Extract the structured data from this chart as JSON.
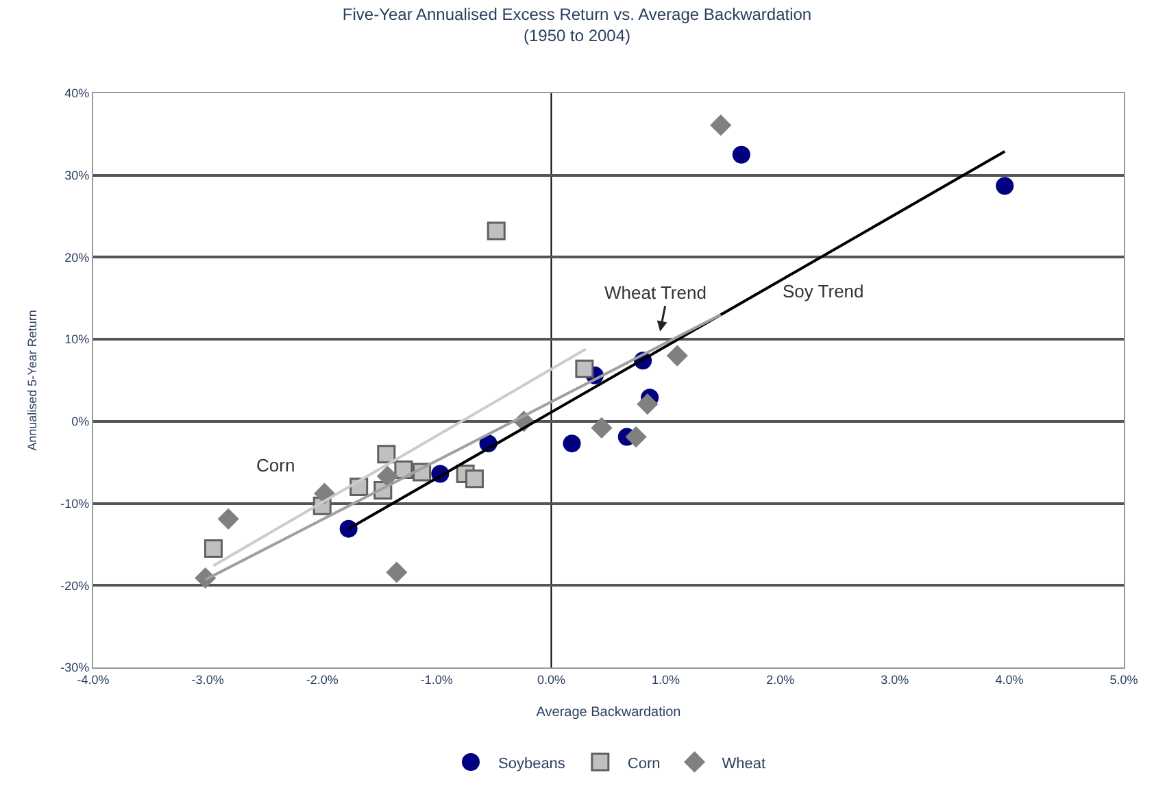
{
  "chart_data": {
    "type": "scatter",
    "title": "Five-Year Annualised Excess Return vs. Average Backwardation",
    "subtitle": "(1950 to 2004)",
    "xlabel": "Average Backwardation",
    "ylabel": "Annualised 5-Year Return",
    "series": [
      {
        "name": "Soybeans",
        "color": "#000080",
        "marker": "circle",
        "x": [
          -1.77,
          -0.97,
          -0.55,
          0.18,
          0.38,
          0.8,
          0.86,
          0.66,
          1.66,
          3.96
        ],
        "values": [
          -13.1,
          -6.4,
          -2.7,
          -2.7,
          5.6,
          7.4,
          2.9,
          -1.9,
          32.5,
          28.7
        ]
      },
      {
        "name": "Corn",
        "color": "#c0c0c0",
        "marker": "square",
        "x": [
          -0.48,
          0.29,
          -1.44,
          -1.29,
          -1.13,
          -1.68,
          -1.47,
          -2.0,
          -2.95,
          -0.75,
          -0.67
        ],
        "values": [
          23.2,
          6.4,
          -4.0,
          -5.9,
          -6.2,
          -8.0,
          -8.4,
          -10.3,
          -15.5,
          -6.4,
          -7.0
        ]
      },
      {
        "name": "Wheat",
        "color": "#808080",
        "marker": "diamond",
        "x": [
          -3.02,
          -2.82,
          -1.98,
          -1.35,
          -1.43,
          -0.24,
          0.44,
          0.74,
          0.84,
          1.1,
          1.48
        ],
        "values": [
          -19.1,
          -11.9,
          -8.8,
          -18.4,
          -6.7,
          0.0,
          -0.8,
          -1.9,
          2.1,
          8.0,
          36.1
        ]
      },
      {
        "type": "line",
        "color": "#000000",
        "x": [
          -1.77,
          3.96
        ],
        "values": [
          -13.1,
          32.9
        ]
      },
      {
        "type": "line",
        "color": "#a0a0a0",
        "x": [
          -3.02,
          1.48
        ],
        "values": [
          -19.3,
          13.0
        ]
      },
      {
        "type": "line",
        "color": "#cccccc",
        "x": [
          -2.95,
          0.3
        ],
        "values": [
          -17.6,
          8.8
        ]
      }
    ],
    "xlim": [
      -4,
      5
    ],
    "xticks": [
      {
        "value": -4,
        "label": "-4.0%"
      },
      {
        "value": -3,
        "label": "-3.0%"
      },
      {
        "value": -2,
        "label": "-2.0%"
      },
      {
        "value": -1,
        "label": "-1.0%"
      },
      {
        "value": 0,
        "label": "0.0%"
      },
      {
        "value": 1,
        "label": "1.0%"
      },
      {
        "value": 2,
        "label": "2.0%"
      },
      {
        "value": 3,
        "label": "3.0%"
      },
      {
        "value": 4,
        "label": "4.0%"
      },
      {
        "value": 5,
        "label": "5.0%"
      }
    ],
    "ylim": [
      -30,
      40
    ],
    "yticks": [
      {
        "value": -30,
        "label": "-30%"
      },
      {
        "value": -20,
        "label": "-20%"
      },
      {
        "value": -10,
        "label": "-10%"
      },
      {
        "value": 0,
        "label": "0%"
      },
      {
        "value": 10,
        "label": "10%"
      },
      {
        "value": 20,
        "label": "20%"
      },
      {
        "value": 30,
        "label": "30%"
      },
      {
        "value": 40,
        "label": "40%"
      }
    ],
    "ref_lines": [
      {
        "axis": "x",
        "value": 0,
        "color": "#000000"
      }
    ],
    "annotations": [
      "Corn",
      "Wheat Trend",
      "Soy Trend"
    ],
    "grid": "y",
    "legend": "bottom"
  }
}
